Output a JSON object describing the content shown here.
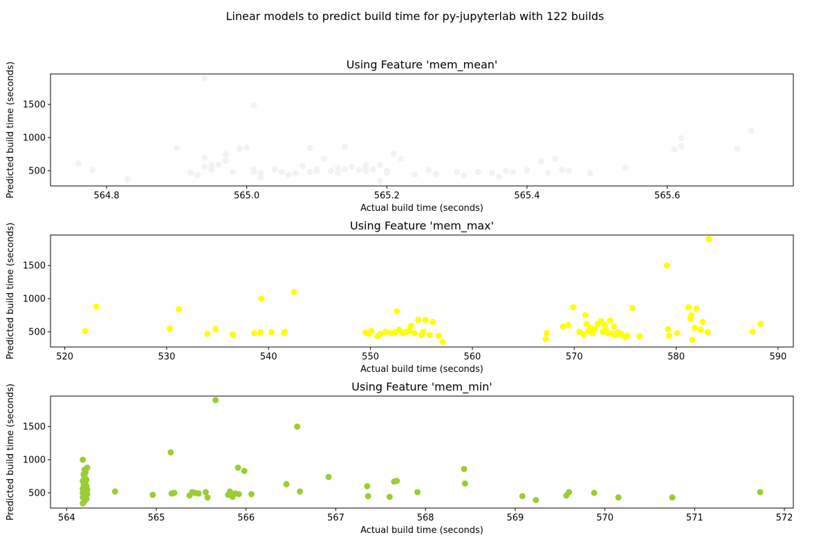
{
  "figure": {
    "suptitle": "Linear models to predict build time for py-jupyterlab with 122 builds"
  },
  "chart_data": [
    {
      "type": "scatter",
      "title": "Using Feature 'mem_mean'",
      "xlabel": "Actual build time (seconds)",
      "ylabel": "Predicted build time (seconds)",
      "xlim": [
        564.72,
        565.78
      ],
      "ylim": [
        270,
        1960
      ],
      "xticks": [
        564.8,
        565.0,
        565.2,
        565.4,
        565.6
      ],
      "xtick_labels": [
        "564.8",
        "565.0",
        "565.2",
        "565.4",
        "565.6"
      ],
      "yticks": [
        500,
        1000,
        1500
      ],
      "ytick_labels": [
        "500",
        "1000",
        "1500"
      ],
      "color": "#f2f2f2",
      "x": [
        564.76,
        564.78,
        564.83,
        564.9,
        564.92,
        564.93,
        564.94,
        564.94,
        564.95,
        564.95,
        564.96,
        564.97,
        564.97,
        564.98,
        564.99,
        565.0,
        565.01,
        565.01,
        565.02,
        565.02,
        565.04,
        565.05,
        565.06,
        565.07,
        565.08,
        565.09,
        565.09,
        565.1,
        565.1,
        565.11,
        565.12,
        565.13,
        565.13,
        565.14,
        565.15,
        565.16,
        565.17,
        565.17,
        565.18,
        565.19,
        565.19,
        565.2,
        565.21,
        565.22,
        565.24,
        565.26,
        565.27,
        565.3,
        565.31,
        565.33,
        565.35,
        565.36,
        565.37,
        565.38,
        565.4,
        565.42,
        565.43,
        565.44,
        565.45,
        565.46,
        565.49,
        565.54,
        565.61,
        565.62,
        565.62,
        565.7,
        565.72,
        564.94,
        565.01,
        565.14,
        565.17,
        565.2
      ],
      "y": [
        610,
        510,
        370,
        840,
        470,
        430,
        700,
        560,
        580,
        520,
        590,
        650,
        750,
        480,
        830,
        850,
        1490,
        520,
        460,
        400,
        520,
        480,
        440,
        460,
        570,
        480,
        840,
        500,
        520,
        680,
        500,
        540,
        470,
        860,
        560,
        510,
        580,
        500,
        520,
        350,
        580,
        500,
        750,
        680,
        440,
        510,
        450,
        480,
        430,
        480,
        460,
        410,
        500,
        480,
        510,
        640,
        470,
        680,
        510,
        500,
        460,
        550,
        820,
        870,
        990,
        830,
        1100,
        1900,
        480,
        520,
        540,
        470
      ]
    },
    {
      "type": "scatter",
      "title": "Using Feature 'mem_max'",
      "xlabel": "Actual build time (seconds)",
      "ylabel": "Predicted build time (seconds)",
      "xlim": [
        518.6,
        591.5
      ],
      "ylim": [
        270,
        1960
      ],
      "xticks": [
        520,
        530,
        540,
        550,
        560,
        570,
        580,
        590
      ],
      "xtick_labels": [
        "520",
        "530",
        "540",
        "550",
        "560",
        "570",
        "580",
        "590"
      ],
      "yticks": [
        500,
        1000,
        1500
      ],
      "ytick_labels": [
        "500",
        "1000",
        "1500"
      ],
      "color": "#ffff00",
      "x": [
        522,
        523.1,
        530.3,
        531.2,
        534,
        534.8,
        536.5,
        538.6,
        539.2,
        539.3,
        540.3,
        541.5,
        541.6,
        542.5,
        549.5,
        549.8,
        550.1,
        550.7,
        551,
        551.5,
        552,
        552.4,
        552.6,
        552.8,
        553.2,
        553.5,
        553.8,
        554,
        554.3,
        554.7,
        555,
        555.2,
        555.4,
        555.8,
        556.1,
        556.7,
        557.1,
        567.2,
        567.3,
        568.9,
        569.4,
        569.9,
        570.5,
        570.9,
        571.1,
        571.2,
        571.4,
        571.6,
        571.8,
        572,
        572.3,
        572.6,
        572.8,
        573,
        573.1,
        573.3,
        573.5,
        573.7,
        573.9,
        574.1,
        574.3,
        574.6,
        575,
        575.2,
        575.7,
        576.4,
        579.1,
        579.2,
        579.3,
        580.1,
        581.2,
        581.4,
        581.5,
        581.6,
        581.8,
        582,
        582.4,
        582.6,
        583.1,
        583.2,
        587.5,
        588.3
      ],
      "y": [
        510,
        880,
        550,
        840,
        470,
        540,
        460,
        480,
        490,
        1000,
        490,
        480,
        500,
        1100,
        490,
        470,
        510,
        430,
        470,
        500,
        480,
        490,
        810,
        530,
        480,
        500,
        520,
        590,
        480,
        680,
        450,
        500,
        680,
        450,
        650,
        440,
        350,
        390,
        480,
        580,
        600,
        870,
        500,
        460,
        750,
        620,
        510,
        560,
        480,
        540,
        620,
        660,
        500,
        600,
        530,
        480,
        670,
        470,
        580,
        450,
        490,
        470,
        420,
        440,
        860,
        430,
        1500,
        540,
        440,
        480,
        870,
        700,
        750,
        380,
        560,
        850,
        530,
        650,
        490,
        1900,
        500,
        620
      ]
    },
    {
      "type": "scatter",
      "title": "Using Feature 'mem_min'",
      "xlabel": "Actual build time (seconds)",
      "ylabel": "Predicted build time (seconds)",
      "xlim": [
        563.82,
        572.1
      ],
      "ylim": [
        270,
        1960
      ],
      "xticks": [
        564,
        565,
        566,
        567,
        568,
        569,
        570,
        571,
        572
      ],
      "xtick_labels": [
        "564",
        "565",
        "566",
        "567",
        "568",
        "569",
        "570",
        "571",
        "572"
      ],
      "yticks": [
        500,
        1000,
        1500
      ],
      "ytick_labels": [
        "500",
        "1000",
        "1500"
      ],
      "color": "#9acd32",
      "x": [
        564.18,
        564.2,
        564.22,
        564.18,
        564.21,
        564.19,
        564.23,
        564.2,
        564.18,
        564.22,
        564.19,
        564.21,
        564.2,
        564.23,
        564.18,
        564.2,
        564.22,
        564.19,
        564.21,
        564.2,
        564.18,
        564.22,
        564.2,
        564.19,
        564.21,
        564.2,
        564.23,
        564.18,
        564.54,
        564.96,
        565.16,
        565.17,
        565.2,
        565.37,
        565.4,
        565.43,
        565.47,
        565.55,
        565.57,
        565.66,
        565.8,
        565.82,
        565.85,
        565.88,
        565.91,
        565.92,
        565.98,
        566.06,
        566.45,
        566.57,
        566.6,
        566.92,
        567.35,
        567.36,
        567.6,
        567.65,
        567.68,
        567.91,
        568.43,
        568.44,
        569.08,
        569.23,
        569.57,
        569.6,
        569.88,
        570.15,
        570.75,
        571.73
      ],
      "y": [
        340,
        380,
        410,
        430,
        450,
        470,
        480,
        490,
        500,
        510,
        520,
        530,
        540,
        550,
        560,
        580,
        600,
        620,
        640,
        660,
        680,
        700,
        750,
        780,
        810,
        850,
        880,
        1000,
        520,
        470,
        1110,
        490,
        500,
        460,
        510,
        500,
        490,
        510,
        430,
        1900,
        470,
        520,
        440,
        490,
        880,
        480,
        830,
        480,
        630,
        1500,
        520,
        740,
        600,
        450,
        440,
        670,
        680,
        510,
        860,
        640,
        450,
        390,
        460,
        510,
        500,
        430,
        430,
        510
      ]
    }
  ]
}
